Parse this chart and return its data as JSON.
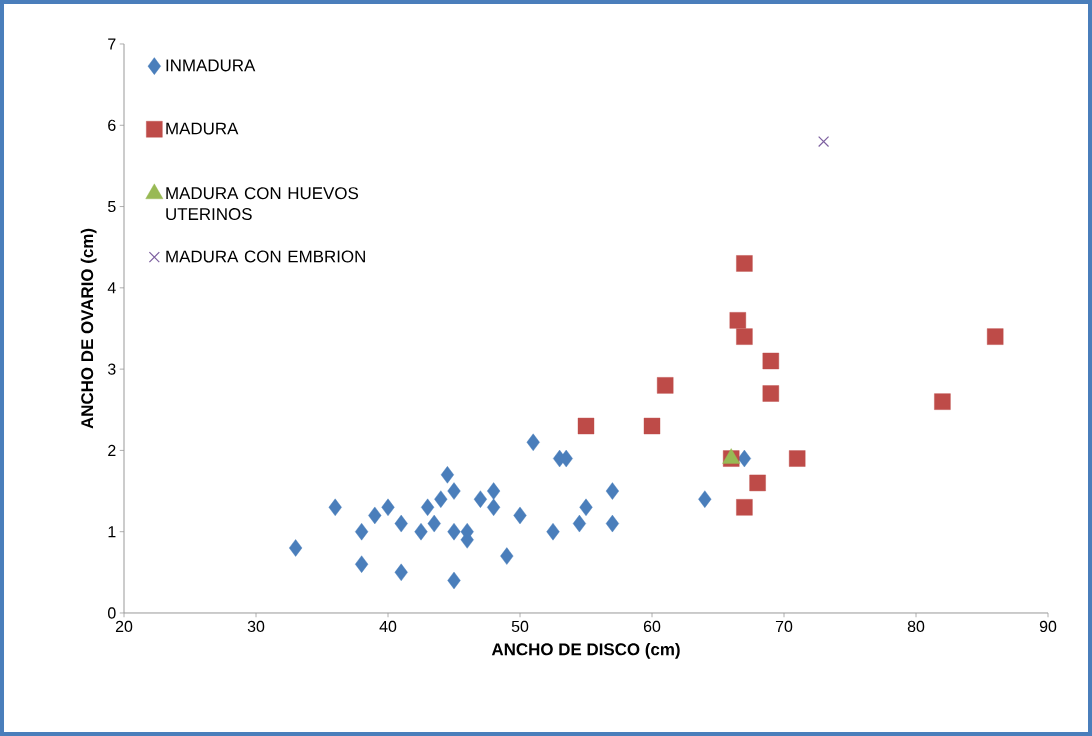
{
  "chart_data": {
    "type": "scatter",
    "xlabel": "ANCHO DE DISCO (cm)",
    "ylabel": "ANCHO DE OVARIO (cm)",
    "xlim": [
      20,
      90
    ],
    "xticks": [
      20,
      30,
      40,
      50,
      60,
      70,
      80,
      90
    ],
    "ylim": [
      0,
      7
    ],
    "yticks": [
      0,
      1,
      2,
      3,
      4,
      5,
      6,
      7
    ],
    "grid": false,
    "legend": "top left",
    "series": [
      {
        "name": "INMADURA",
        "color": "#4a7ebb",
        "marker": "diamond",
        "x": [
          33,
          36,
          38,
          38,
          39,
          40,
          41,
          41,
          42.5,
          43,
          43.5,
          44,
          44.5,
          45,
          45,
          45,
          46,
          46,
          47,
          48,
          48,
          49,
          50,
          51,
          52.5,
          53,
          53.5,
          54.5,
          55,
          57,
          57,
          64,
          67
        ],
        "values": [
          0.8,
          1.3,
          1.0,
          0.6,
          1.2,
          1.3,
          1.1,
          0.5,
          1.0,
          1.3,
          1.1,
          1.4,
          1.7,
          1.5,
          1.0,
          0.4,
          1.0,
          0.9,
          1.4,
          1.5,
          1.3,
          0.7,
          1.2,
          2.1,
          1.0,
          1.9,
          1.9,
          1.1,
          1.3,
          1.5,
          1.1,
          1.4,
          1.9
        ]
      },
      {
        "name": "MADURA",
        "color": "#be4b48",
        "marker": "square",
        "x": [
          55,
          60,
          61,
          66.5,
          67,
          67,
          69,
          69,
          66,
          71,
          68,
          67,
          82,
          86
        ],
        "values": [
          2.3,
          2.3,
          2.8,
          3.6,
          4.3,
          3.4,
          3.1,
          2.7,
          1.9,
          1.9,
          1.6,
          1.3,
          2.6,
          3.4
        ]
      },
      {
        "name": "MADURA CON HUEVOS UTERINOS",
        "color": "#98b954",
        "marker": "triangle",
        "x": [
          66
        ],
        "values": [
          1.9
        ]
      },
      {
        "name": "MADURA CON EMBRION",
        "color": "#7d60a0",
        "marker": "cross",
        "x": [
          73
        ],
        "values": [
          5.8
        ]
      }
    ]
  }
}
